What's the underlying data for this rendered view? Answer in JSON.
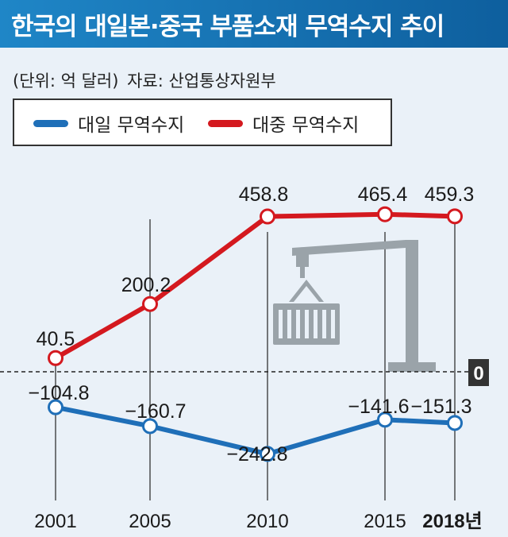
{
  "header": {
    "title": "한국의 대일본·중국 부품소재 무역수지 추이",
    "unit_note": "(단위: 억 달러)",
    "source_note": "자료: 산업통상자원부"
  },
  "colors": {
    "japan": "#1f6fb8",
    "china": "#d4191f",
    "banner": "#1479bf"
  },
  "icons": [
    "crane-container-icon"
  ],
  "chart_data": {
    "type": "line",
    "categories": [
      "2001",
      "2005",
      "2010",
      "2015",
      "2018년"
    ],
    "series": [
      {
        "name": "대일 무역수지",
        "values": [
          -104.8,
          -160.7,
          -242.8,
          -141.6,
          -151.3
        ],
        "labels": [
          "−104.8",
          "−160.7",
          "−242.8",
          "−141.6",
          "−151.3"
        ]
      },
      {
        "name": "대중 무역수지",
        "values": [
          40.5,
          200.2,
          458.8,
          465.4,
          459.3
        ],
        "labels": [
          "40.5",
          "200.2",
          "458.8",
          "465.4",
          "459.3"
        ]
      }
    ],
    "zero_label": "0",
    "title": "",
    "xlabel": "",
    "ylabel": "",
    "legend": "top-left",
    "grid": false
  }
}
